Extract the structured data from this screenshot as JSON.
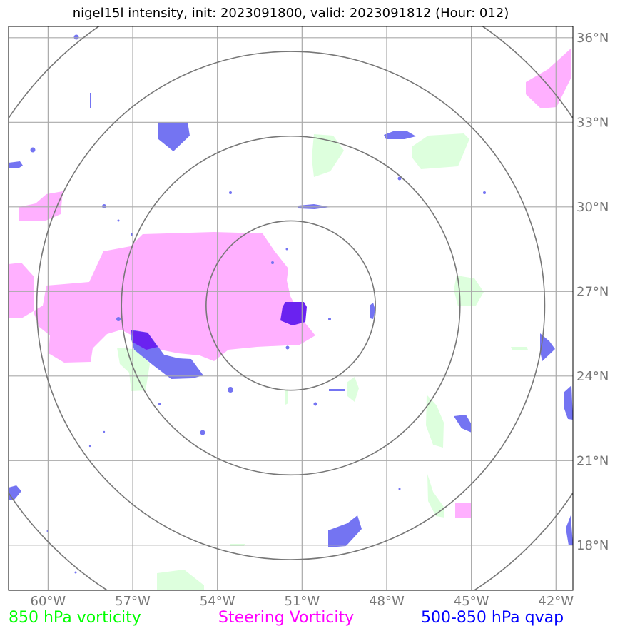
{
  "title": "nigel15l intensity, init: 2023091800, valid: 2023091812 (Hour: 012)",
  "map": {
    "lon_range": [
      -61.4,
      -41.4
    ],
    "lat_range": [
      16.4,
      36.4
    ],
    "lon_ticks": [
      {
        "value": -60,
        "label": "60°W"
      },
      {
        "value": -57,
        "label": "57°W"
      },
      {
        "value": -54,
        "label": "54°W"
      },
      {
        "value": -51,
        "label": "51°W"
      },
      {
        "value": -48,
        "label": "48°W"
      },
      {
        "value": -45,
        "label": "45°W"
      },
      {
        "value": -42,
        "label": "42°W"
      }
    ],
    "lat_ticks": [
      {
        "value": 36,
        "label": "36°N"
      },
      {
        "value": 33,
        "label": "33°N"
      },
      {
        "value": 30,
        "label": "30°N"
      },
      {
        "value": 27,
        "label": "27°N"
      },
      {
        "value": 24,
        "label": "24°N"
      },
      {
        "value": 21,
        "label": "21°N"
      },
      {
        "value": 18,
        "label": "18°N"
      }
    ],
    "storm_center": {
      "lon": -51.4,
      "lat": 26.5
    },
    "range_rings_deg": [
      3,
      6,
      9,
      12
    ],
    "grid": true
  },
  "legend": {
    "vort850": {
      "label": "850 hPa vorticity",
      "color": "#00ff00"
    },
    "steering": {
      "label": "Steering Vorticity",
      "color": "#ff00ff"
    },
    "qvap": {
      "label": "500-850 hPa qvap",
      "color": "#0000ff"
    }
  },
  "fill_colors": {
    "vort850": "#ddffdd",
    "steering": "#ffb0ff",
    "qvap": "#7474f2",
    "overlap": "#6a22f0"
  }
}
